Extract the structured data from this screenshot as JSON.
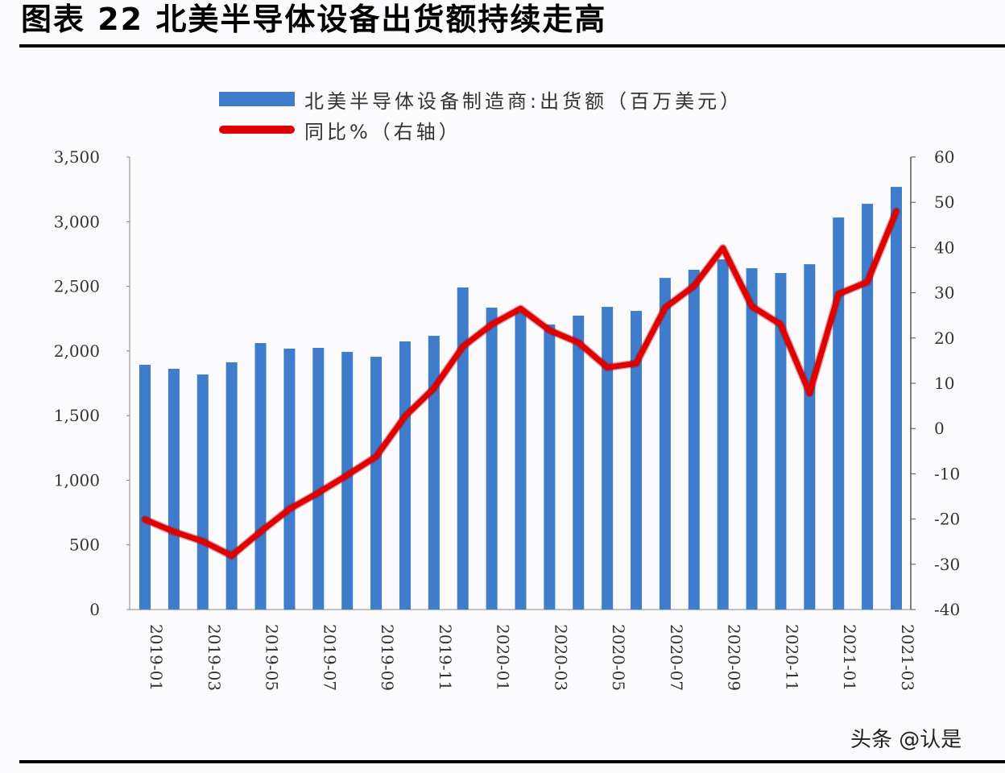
{
  "figure": {
    "title": "图表 22  北美半导体设备出货额持续走高"
  },
  "legend": {
    "items": [
      {
        "label": "北美半导体设备制造商:出货额（百万美元）",
        "type": "bar",
        "color": "#3f7ccb"
      },
      {
        "label": "同比%（右轴）",
        "type": "line",
        "color": "#e00000"
      }
    ]
  },
  "watermark": "头条 @认是",
  "chart_data": {
    "type": "bar+line",
    "title": "北美半导体设备出货额持续走高",
    "xlabel": "",
    "ylabel": "出货额（百万美元）",
    "ylabel_right": "同比%",
    "categories": [
      "2019-01",
      "2019-02",
      "2019-03",
      "2019-04",
      "2019-05",
      "2019-06",
      "2019-07",
      "2019-08",
      "2019-09",
      "2019-10",
      "2019-11",
      "2019-12",
      "2020-01",
      "2020-02",
      "2020-03",
      "2020-04",
      "2020-05",
      "2020-06",
      "2020-07",
      "2020-08",
      "2020-09",
      "2020-10",
      "2020-11",
      "2020-12",
      "2021-01",
      "2021-02",
      "2021-03"
    ],
    "x_tick_labels": [
      "2019-01",
      "2019-03",
      "2019-05",
      "2019-07",
      "2019-09",
      "2019-11",
      "2020-01",
      "2020-03",
      "2020-05",
      "2020-07",
      "2020-09",
      "2020-11",
      "2021-01",
      "2021-03"
    ],
    "series": [
      {
        "name": "北美半导体设备制造商:出货额（百万美元）",
        "type": "bar",
        "axis": "left",
        "color": "#3f7ccb",
        "values": [
          1893,
          1862,
          1818,
          1912,
          2061,
          2018,
          2024,
          1993,
          1955,
          2074,
          2117,
          2491,
          2335,
          2300,
          2205,
          2273,
          2341,
          2310,
          2565,
          2628,
          2708,
          2640,
          2603,
          2671,
          3032,
          3138,
          3269
        ]
      },
      {
        "name": "同比%（右轴）",
        "type": "line",
        "axis": "right",
        "color": "#e00000",
        "values": [
          -20.1,
          -22.8,
          -24.9,
          -28.1,
          -22.8,
          -17.8,
          -14.2,
          -10.3,
          -6.2,
          2.7,
          8.9,
          18.1,
          23.0,
          26.5,
          21.7,
          19.0,
          13.5,
          14.4,
          26.7,
          31.5,
          39.9,
          27.0,
          23.0,
          7.8,
          29.7,
          32.4,
          48.0
        ]
      }
    ],
    "ylim": [
      0,
      3500
    ],
    "yticks": [
      0,
      500,
      1000,
      1500,
      2000,
      2500,
      3000,
      3500
    ],
    "ytick_labels": [
      "0",
      "500",
      "1,000",
      "1,500",
      "2,000",
      "2,500",
      "3,000",
      "3,500"
    ],
    "ylim_right": [
      -40,
      60
    ],
    "yticks_right": [
      -40,
      -30,
      -20,
      -10,
      0,
      10,
      20,
      30,
      40,
      50,
      60
    ],
    "grid": false,
    "legend_position": "top"
  }
}
